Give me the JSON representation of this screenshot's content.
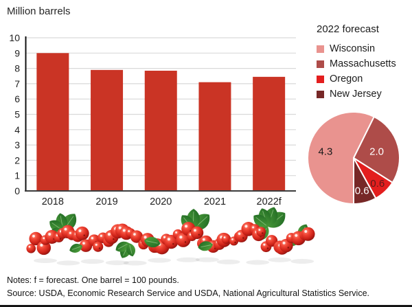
{
  "figure": {
    "title": "Million barrels",
    "notes": "Notes: f = forecast. One barrel = 100 pounds.",
    "source": "Source: USDA, Economic Research Service and USDA, National Agricultural Statistics Service."
  },
  "images": [
    {
      "name": "cranberry-garland-photo"
    }
  ],
  "colors": {
    "bar": "#ca3425",
    "grid": "#d9d9d9",
    "y_axis": "#111111",
    "x_axis": "#3c3c3c",
    "text": "#1f1f1f"
  },
  "chart_data": [
    {
      "type": "bar",
      "title": "Million barrels",
      "categories": [
        "2018",
        "2019",
        "2020",
        "2021",
        "2022f"
      ],
      "values": [
        9.0,
        7.9,
        7.85,
        7.1,
        7.45
      ],
      "ylim": [
        0,
        10
      ],
      "yticks": [
        0,
        1,
        2,
        3,
        4,
        5,
        6,
        7,
        8,
        9,
        10
      ],
      "grid": true,
      "bar_color": "#ca3425"
    },
    {
      "type": "pie",
      "legend_title": "2022 forecast",
      "total": 7.5,
      "start_angle_deg": 180,
      "direction": "clockwise",
      "legend_position": "top-right",
      "slices": [
        {
          "label": "Wisconsin",
          "value": 4.3,
          "display": "4.3",
          "color": "#e9938f",
          "text_color": "#1a1a1a"
        },
        {
          "label": "Massachusetts",
          "value": 2.0,
          "display": "2.0",
          "color": "#ae4c49",
          "text_color": "#ffffff"
        },
        {
          "label": "Oregon",
          "value": 0.6,
          "display": "0.6",
          "color": "#e31e1e",
          "text_color": "#5d1b19"
        },
        {
          "label": "New Jersey",
          "value": 0.6,
          "display": "0.6",
          "color": "#772827",
          "text_color": "#ffffff"
        }
      ]
    }
  ]
}
